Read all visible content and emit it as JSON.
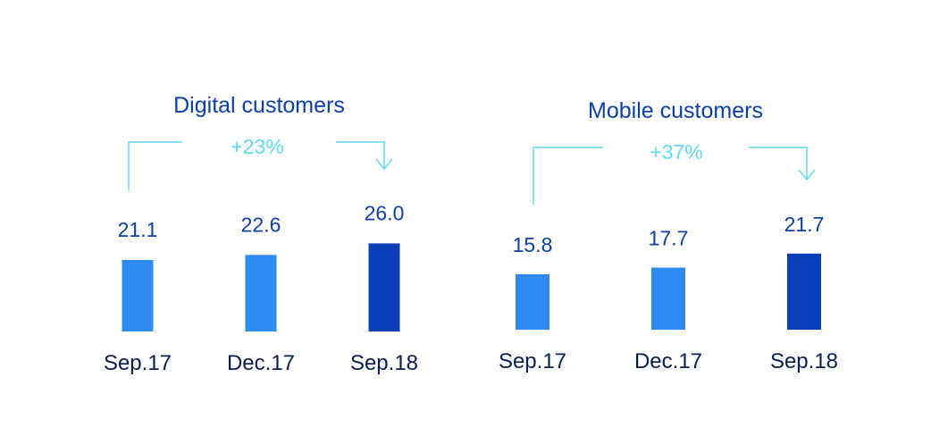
{
  "colors": {
    "title": "#0d3fa6",
    "value": "#0d3fa6",
    "category": "#0a1d4f",
    "growth": "#5ddaf2",
    "bar_light": "#2d8bf2",
    "bar_dark": "#0a3fb8"
  },
  "chart_data": [
    {
      "type": "bar",
      "title": "Digital customers",
      "growth_label": "+23%",
      "categories": [
        "Sep.17",
        "Dec.17",
        "Sep.18"
      ],
      "values": [
        21.1,
        22.6,
        26.0
      ],
      "value_labels": [
        "21.1",
        "22.6",
        "26.0"
      ],
      "highlight_index": 2
    },
    {
      "type": "bar",
      "title": "Mobile customers",
      "growth_label": "+37%",
      "categories": [
        "Sep.17",
        "Dec.17",
        "Sep.18"
      ],
      "values": [
        15.8,
        17.7,
        21.7
      ],
      "value_labels": [
        "15.8",
        "17.7",
        "21.7"
      ],
      "highlight_index": 2
    }
  ]
}
